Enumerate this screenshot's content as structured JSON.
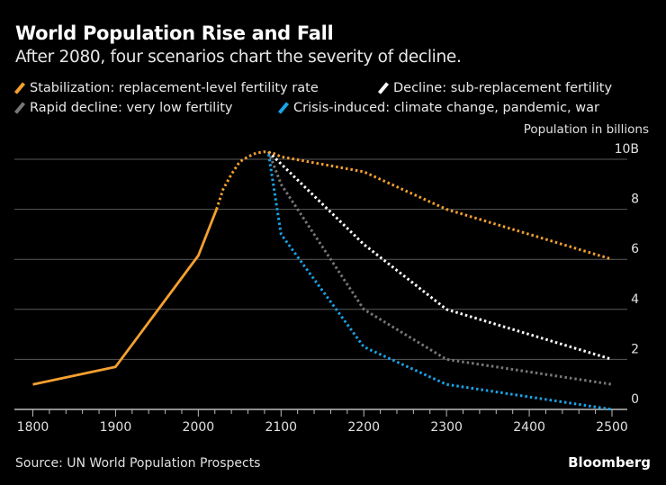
{
  "title": "World Population Rise and Fall",
  "subtitle": "After 2080, four scenarios chart the severity of decline.",
  "source": "Source: UN World Population Prospects",
  "brand": "Bloomberg",
  "chart_data": {
    "type": "line",
    "ylabel": "Population in billions",
    "xlim": [
      1800,
      2500
    ],
    "ylim": [
      0,
      10
    ],
    "x_ticks": [
      "1800",
      "1900",
      "2000",
      "2100",
      "2200",
      "2300",
      "2400",
      "2500"
    ],
    "y_ticks": [
      "0",
      "2",
      "4",
      "6",
      "8",
      "10B"
    ],
    "grid": true,
    "legend_placement": "top",
    "historical": {
      "color": "#f5a030",
      "style": "solid",
      "x": [
        1800,
        1900,
        2000,
        2022
      ],
      "y": [
        1.0,
        1.7,
        6.15,
        8.0
      ]
    },
    "series": [
      {
        "name": "Stabilization: replacement-level fertility rate",
        "color": "#f5a030",
        "x": [
          2022,
          2030,
          2040,
          2050,
          2060,
          2070,
          2080,
          2090,
          2100,
          2200,
          2300,
          2500
        ],
        "y": [
          8.0,
          8.8,
          9.4,
          9.9,
          10.1,
          10.25,
          10.3,
          10.25,
          10.1,
          9.5,
          8.0,
          6.0
        ]
      },
      {
        "name": "Decline: sub-replacement fertility",
        "color": "#ffffff",
        "x": [
          2085,
          2200,
          2300,
          2500
        ],
        "y": [
          10.3,
          6.6,
          4.0,
          2.0
        ]
      },
      {
        "name": "Rapid decline: very low fertility",
        "color": "#777777",
        "x": [
          2085,
          2100,
          2200,
          2300,
          2500
        ],
        "y": [
          10.3,
          9.0,
          4.0,
          2.0,
          1.0
        ]
      },
      {
        "name": "Crisis-induced: climate change, pandemic, war",
        "color": "#1aa3e8",
        "x": [
          2085,
          2100,
          2200,
          2300,
          2500
        ],
        "y": [
          10.2,
          7.0,
          2.5,
          1.0,
          0.0
        ]
      }
    ]
  }
}
